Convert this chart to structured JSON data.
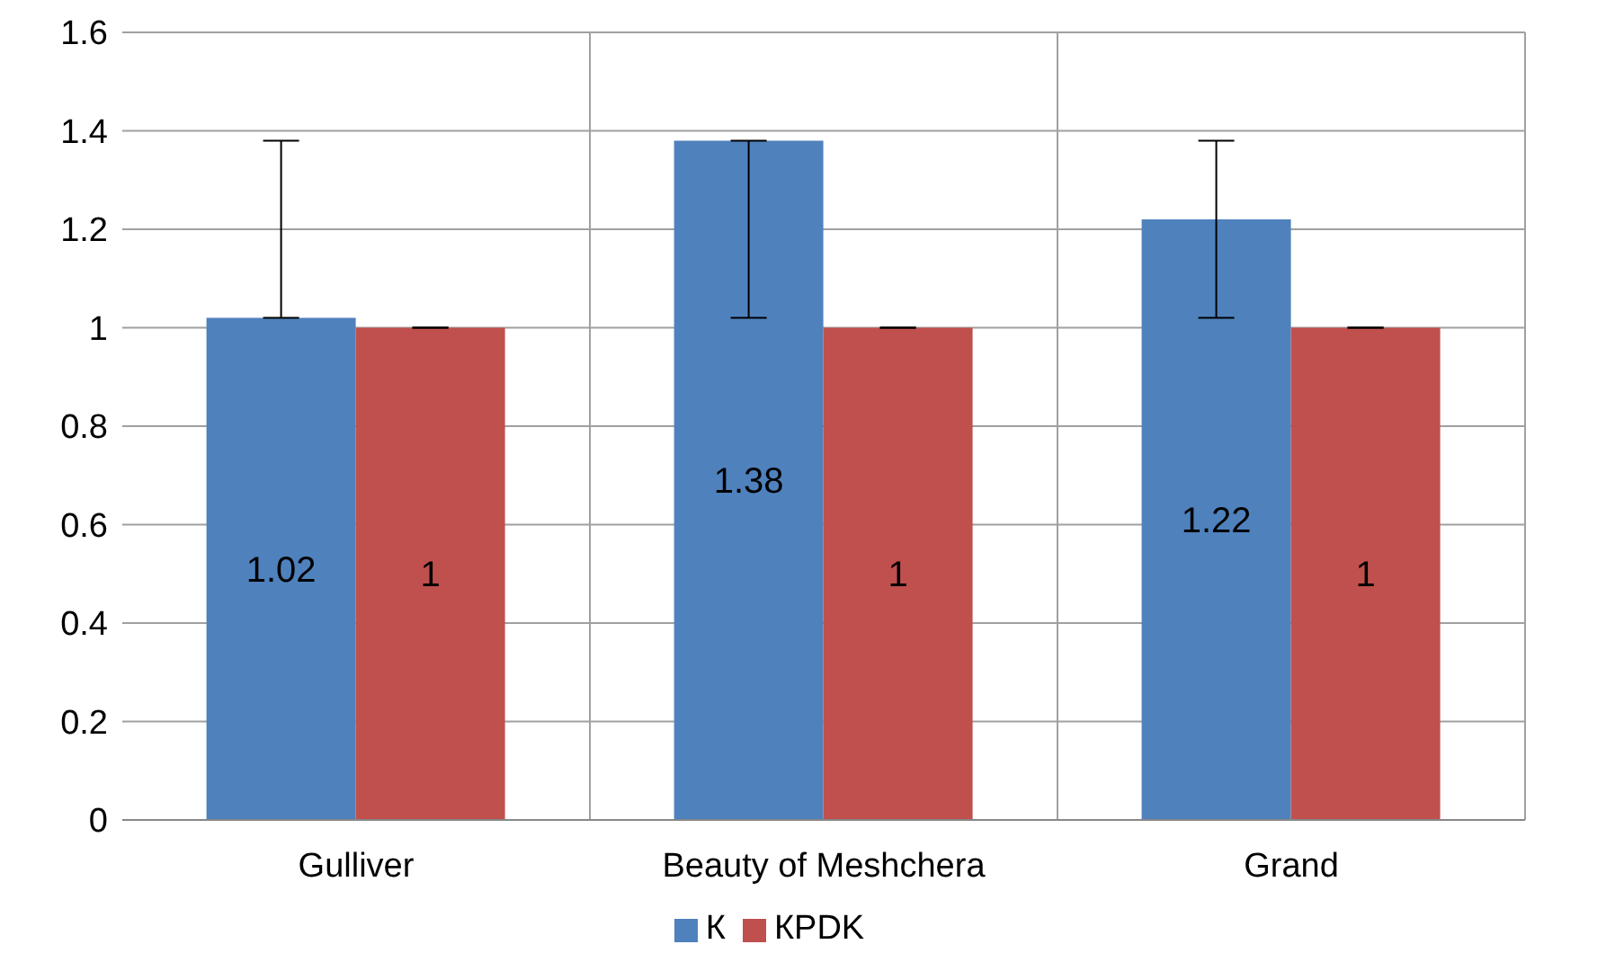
{
  "chart_data": {
    "type": "bar",
    "categories": [
      "Gulliver",
      "Beauty of Meshchera",
      "Grand"
    ],
    "series": [
      {
        "name": "К",
        "color": "#4f81bd",
        "values": [
          1.02,
          1.38,
          1.22
        ],
        "errors": [
          [
            1.02,
            1.38
          ],
          [
            1.02,
            1.38
          ],
          [
            1.02,
            1.38
          ]
        ]
      },
      {
        "name": "КPDK",
        "color": "#c0504d",
        "values": [
          1,
          1,
          1
        ],
        "errors": [
          [
            1,
            1
          ],
          [
            1,
            1
          ],
          [
            1,
            1
          ]
        ]
      }
    ],
    "ylim": [
      0,
      1.6
    ],
    "yticks": [
      0,
      0.2,
      0.4,
      0.6,
      0.8,
      1,
      1.2,
      1.4,
      1.6
    ],
    "grid": true,
    "legend": "bottom",
    "data_labels": true
  }
}
